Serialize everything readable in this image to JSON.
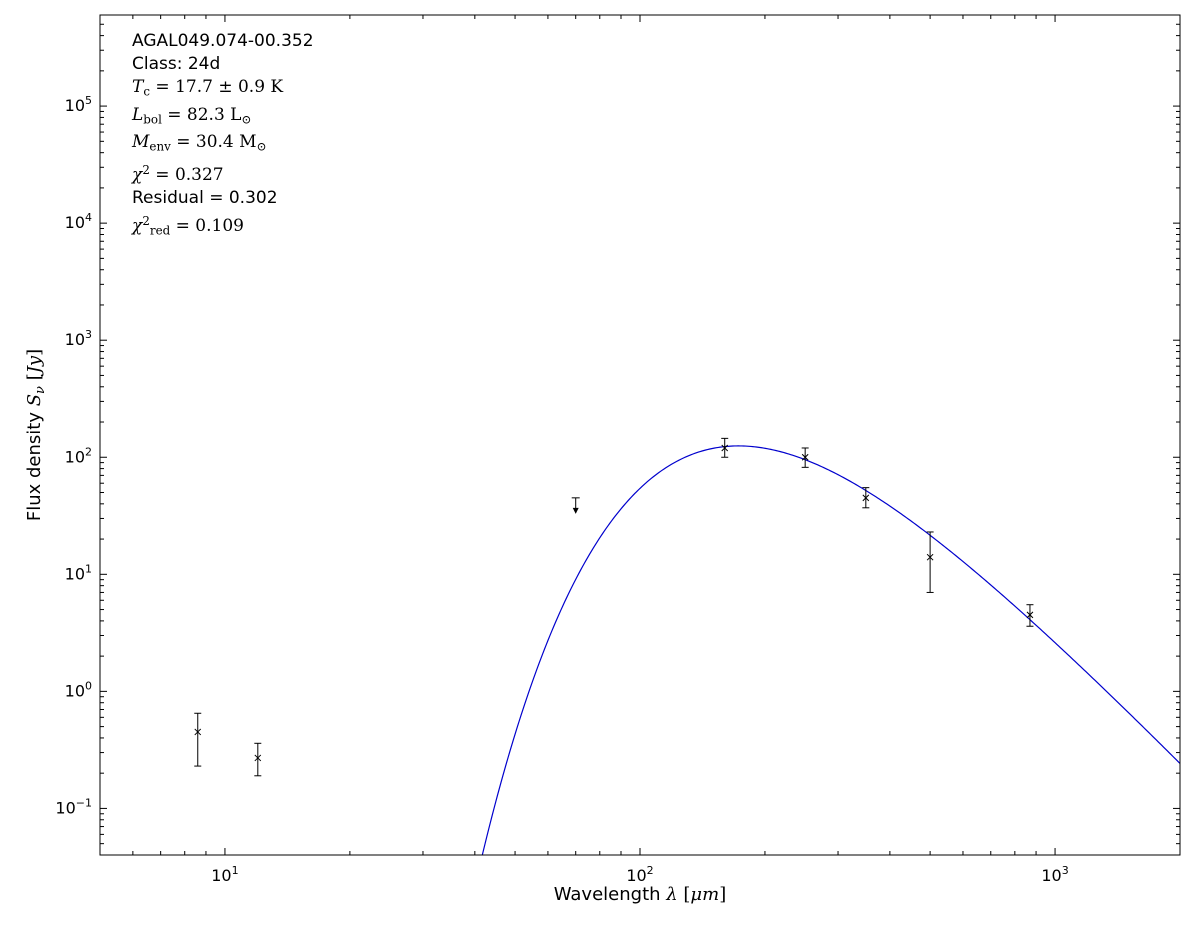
{
  "annotation": {
    "lines": [
      {
        "font": "sans",
        "segments": [
          {
            "t": "AGAL049.074-00.352"
          }
        ]
      },
      {
        "font": "sans",
        "segments": [
          {
            "t": "Class: 24d"
          }
        ]
      },
      {
        "font": "math",
        "segments": [
          {
            "t": "T",
            "i": true
          },
          {
            "t": "c",
            "s": "sub"
          },
          {
            "t": " = 17.7 ± 0.9 K"
          }
        ]
      },
      {
        "font": "math",
        "segments": [
          {
            "t": "L",
            "i": true
          },
          {
            "t": "bol",
            "s": "sub"
          },
          {
            "t": " = 82.3 L"
          },
          {
            "t": "⊙",
            "s": "sub"
          }
        ]
      },
      {
        "font": "math",
        "segments": [
          {
            "t": "M",
            "i": true
          },
          {
            "t": "env",
            "s": "sub"
          },
          {
            "t": " = 30.4 M"
          },
          {
            "t": "⊙",
            "s": "sub"
          }
        ]
      },
      {
        "font": "math",
        "segments": [
          {
            "t": "χ",
            "i": true
          },
          {
            "t": "2",
            "s": "sup"
          },
          {
            "t": " = 0.327"
          }
        ]
      },
      {
        "font": "sans",
        "segments": [
          {
            "t": "Residual = 0.302"
          }
        ]
      },
      {
        "font": "math",
        "segments": [
          {
            "t": "χ",
            "i": true
          },
          {
            "t": "2",
            "s": "sup"
          },
          {
            "t": "red",
            "s": "sub"
          },
          {
            "t": " = 0.109"
          }
        ]
      }
    ]
  },
  "chart_data": {
    "type": "scatter",
    "source_name": "AGAL049.074-00.352",
    "x_axis": {
      "label": "Wavelength λ [μm]",
      "scale": "log",
      "range": [
        5,
        2000
      ],
      "tick_exponents": [
        1,
        2,
        3
      ],
      "label_segments": [
        {
          "t": "Wavelength "
        },
        {
          "t": "λ",
          "i": true,
          "f": "math"
        },
        {
          "t": " [",
          "f": "math"
        },
        {
          "t": "μ",
          "i": true,
          "f": "math"
        },
        {
          "t": "m",
          "i": true,
          "f": "math"
        },
        {
          "t": "]",
          "f": "math"
        }
      ]
    },
    "y_axis": {
      "label": "Flux density Sν [Jy]",
      "scale": "log",
      "range": [
        0.04,
        600000
      ],
      "tick_exponents": [
        -1,
        0,
        1,
        2,
        3,
        4,
        5
      ],
      "label_segments": [
        {
          "t": "Flux density "
        },
        {
          "t": "S",
          "i": true,
          "f": "math"
        },
        {
          "t": "ν",
          "i": true,
          "s": "sub",
          "f": "math"
        },
        {
          "t": " [",
          "f": "math"
        },
        {
          "t": "Jy",
          "i": true,
          "f": "math"
        },
        {
          "t": "]",
          "f": "math"
        }
      ]
    },
    "grid": false,
    "legend": null,
    "marker": "x",
    "marker_color": "#000000",
    "points": [
      {
        "wl_um": 8.6,
        "flux_jy": 0.45,
        "err_hi": 0.2,
        "err_lo": 0.22
      },
      {
        "wl_um": 12,
        "flux_jy": 0.27,
        "err_hi": 0.09,
        "err_lo": 0.08
      },
      {
        "wl_um": 70,
        "flux_jy": 45,
        "upper_limit": true
      },
      {
        "wl_um": 160,
        "flux_jy": 120,
        "err_hi": 25,
        "err_lo": 20
      },
      {
        "wl_um": 250,
        "flux_jy": 100,
        "err_hi": 20,
        "err_lo": 18
      },
      {
        "wl_um": 350,
        "flux_jy": 45,
        "err_hi": 10,
        "err_lo": 8
      },
      {
        "wl_um": 500,
        "flux_jy": 14,
        "err_hi": 9,
        "err_lo": 7
      },
      {
        "wl_um": 870,
        "flux_jy": 4.5,
        "err_hi": 1.0,
        "err_lo": 0.9
      }
    ],
    "fit_curve": {
      "model": "greybody",
      "T_K": 17.7,
      "beta": 1.75,
      "peak_flux_jy": 125,
      "wl_start_um": 36,
      "wl_end_um": 2000,
      "color": "#0000cd"
    }
  }
}
